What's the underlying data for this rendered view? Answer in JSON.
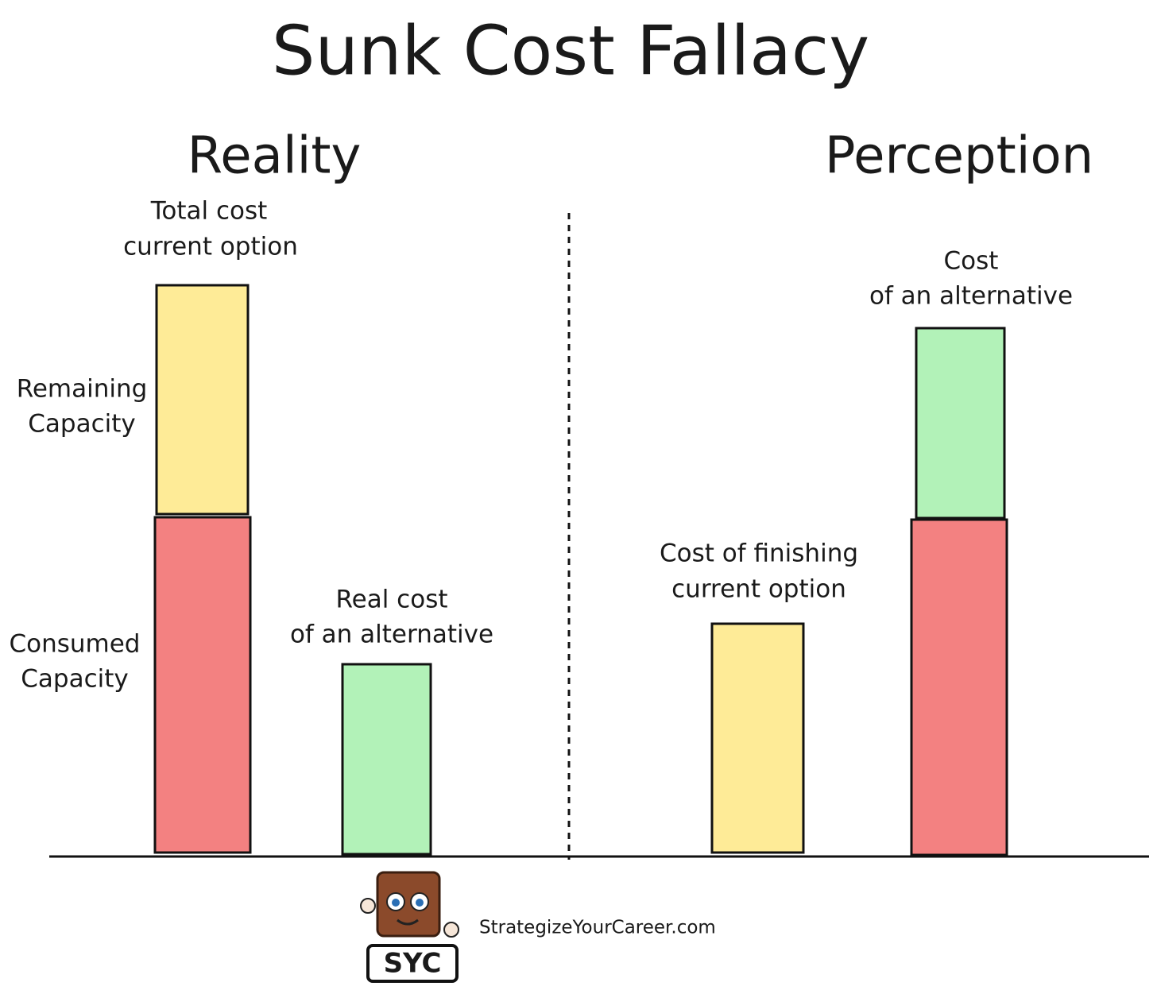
{
  "title": "Sunk Cost Fallacy",
  "panels": [
    {
      "heading": "Reality",
      "labels": [
        {
          "lines": [
            "Total cost",
            "current option"
          ]
        },
        {
          "lines": [
            "Remaining",
            "Capacity"
          ]
        },
        {
          "lines": [
            "Consumed",
            "Capacity"
          ]
        },
        {
          "lines": [
            "Real cost",
            "of an alternative"
          ]
        }
      ]
    },
    {
      "heading": "Perception",
      "labels": [
        {
          "lines": [
            "Cost of finishing",
            "current option"
          ]
        },
        {
          "lines": [
            "Cost",
            "of an alternative"
          ]
        }
      ]
    }
  ],
  "logo": {
    "badge": "SYC",
    "website": "StrategizeYourCareer.com"
  }
}
